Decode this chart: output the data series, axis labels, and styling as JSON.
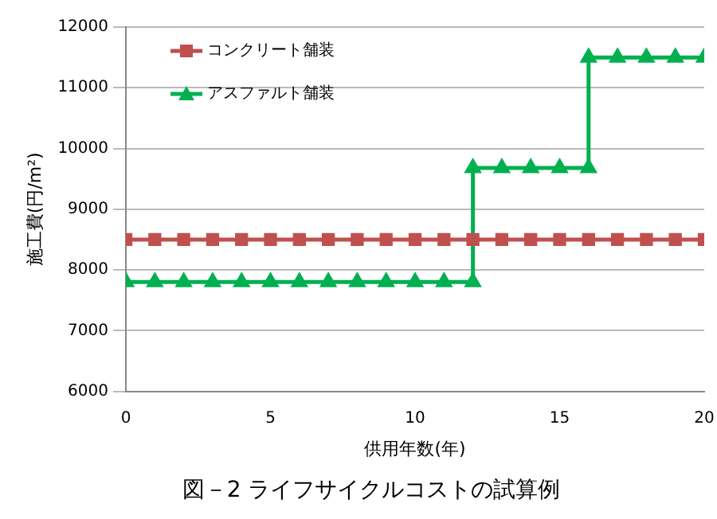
{
  "chart_data": {
    "type": "line",
    "title": "図－2 ライフサイクルコストの試算例",
    "xlabel": "供用年数(年)",
    "ylabel": "施工費(円/m²)",
    "xlim": [
      0,
      20
    ],
    "xticks": [
      0,
      5,
      10,
      15,
      20
    ],
    "ylim": [
      6000,
      12000
    ],
    "yticks": [
      6000,
      7000,
      8000,
      9000,
      10000,
      11000,
      12000
    ],
    "grid": "y",
    "legend": "top left",
    "series": [
      {
        "name": "コンクリート舗装",
        "color": "#c0504d",
        "marker": "square",
        "x": [
          0,
          1,
          2,
          3,
          4,
          5,
          6,
          7,
          8,
          9,
          10,
          11,
          12,
          13,
          14,
          15,
          16,
          17,
          18,
          19,
          20
        ],
        "values": [
          8500,
          8500,
          8500,
          8500,
          8500,
          8500,
          8500,
          8500,
          8500,
          8500,
          8500,
          8500,
          8500,
          8500,
          8500,
          8500,
          8500,
          8500,
          8500,
          8500,
          8500
        ]
      },
      {
        "name": "アスファルト舗装",
        "color": "#00b050",
        "marker": "triangle",
        "x": [
          0,
          1,
          2,
          3,
          4,
          5,
          6,
          7,
          8,
          9,
          10,
          11,
          12,
          12,
          13,
          14,
          15,
          16,
          16,
          17,
          18,
          19,
          20
        ],
        "values": [
          7800,
          7800,
          7800,
          7800,
          7800,
          7800,
          7800,
          7800,
          7800,
          7800,
          7800,
          7800,
          7800,
          9680,
          9680,
          9680,
          9680,
          9680,
          11500,
          11500,
          11500,
          11500,
          11500
        ]
      }
    ]
  }
}
